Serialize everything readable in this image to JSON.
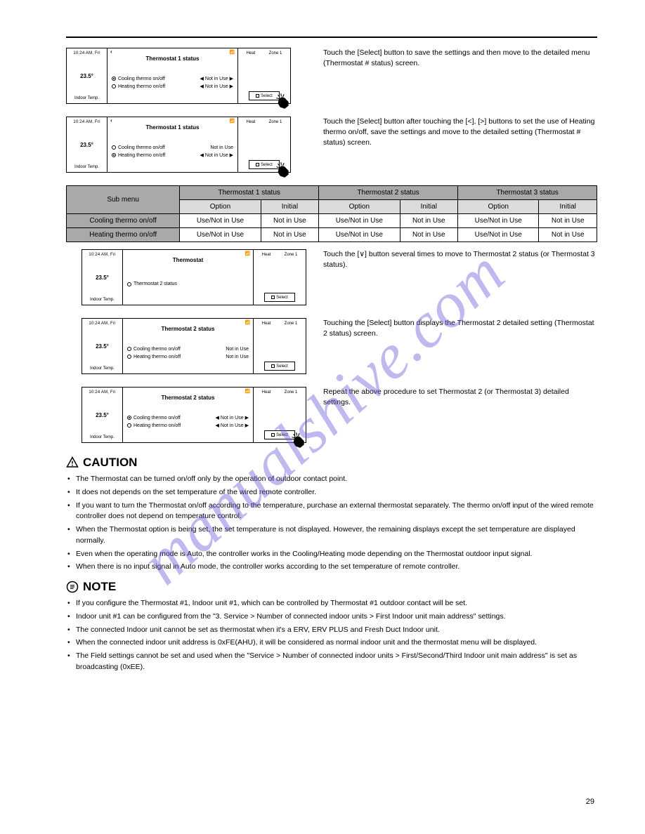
{
  "watermark": "manualshive.com",
  "page_number": "29",
  "table": {
    "top_headers": [
      "Thermostat 1 status",
      "Thermostat 2 status",
      "Thermostat 3 status"
    ],
    "sub_headers": [
      "Option",
      "Initial",
      "Option",
      "Initial",
      "Option",
      "Initial"
    ],
    "row_label_hdr": "Sub menu",
    "rows": [
      {
        "label": "Cooling thermo on/off",
        "cells": [
          "Use/Not in Use",
          "Not in Use",
          "Use/Not in Use",
          "Not in Use",
          "Use/Not in Use",
          "Not in Use"
        ]
      },
      {
        "label": "Heating thermo on/off",
        "cells": [
          "Use/Not in Use",
          "Not in Use",
          "Use/Not in Use",
          "Not in Use",
          "Use/Not in Use",
          "Not in Use"
        ]
      }
    ]
  },
  "steps": [
    {
      "id": "s1",
      "indent": false,
      "finger": true,
      "text_lines": [
        "Touch the [Select] button to save the settings and then move to the",
        "detailed menu (Thermostat # status) screen."
      ],
      "screen": {
        "left": {
          "top": "10:24 AM, Fri",
          "mid": "23.5°",
          "bot": "Indoor Temp."
        },
        "back": true,
        "signal": true,
        "title": "Thermostat 1 status",
        "rows": [
          {
            "label": "Cooling thermo on/off",
            "radio": true,
            "rvalue": "Not in Use",
            "arrows": true
          },
          {
            "label": "Heating thermo on/off",
            "radio": false,
            "rvalue": "Not in Use",
            "arrows": true
          }
        ],
        "right": {
          "mode": "Heat",
          "zone": "Zone 1",
          "btn": true,
          "btn_label": "Select"
        }
      }
    },
    {
      "id": "s2",
      "indent": false,
      "finger": true,
      "text_lines": [
        "Touch the [Select] button after touching the [<], [>] buttons to set",
        "the use of Heating thermo on/off, save the settings and move to the",
        "detailed setting (Thermostat # status) screen."
      ],
      "screen": {
        "left": {
          "top": "10:24 AM, Fri",
          "mid": "23.5°",
          "bot": "Indoor Temp."
        },
        "back": true,
        "signal": true,
        "title": "Thermostat 1 status",
        "rows": [
          {
            "label": "Cooling thermo on/off",
            "radio": false,
            "rvalue": "Not in Use",
            "arrows": false
          },
          {
            "label": "Heating thermo on/off",
            "radio": true,
            "rvalue": "Not in Use",
            "arrows": true
          }
        ],
        "right": {
          "mode": "Heat",
          "zone": "Zone 1",
          "btn": true,
          "btn_label": "Select"
        }
      }
    },
    {
      "id": "s3",
      "indent": true,
      "finger": false,
      "text_lines": [
        "Touch the [∨] button several times to move to Thermostat 2 status",
        "(or Thermostat 3 status)."
      ],
      "screen": {
        "left": {
          "top": "10:24 AM, Fri",
          "mid": "23.5°",
          "bot": "Indoor Temp."
        },
        "back": false,
        "signal": true,
        "title": "Thermostat",
        "rows": [
          {
            "label": "Thermostat 2 status",
            "radio": false,
            "rvalue": "",
            "arrows": false
          }
        ],
        "right": {
          "mode": "Heat",
          "zone": "Zone 1",
          "btn": true,
          "btn_label": "Select"
        }
      }
    },
    {
      "id": "s4",
      "indent": true,
      "finger": false,
      "text_lines": [
        "Touching the [Select] button displays the Thermostat 2 detailed",
        "setting (Thermostat 2 status) screen."
      ],
      "screen": {
        "left": {
          "top": "10:24 AM, Fri",
          "mid": "23.5°",
          "bot": "Indoor Temp."
        },
        "back": false,
        "signal": true,
        "title": "Thermostat 2 status",
        "rows": [
          {
            "label": "Cooling thermo on/off",
            "radio": false,
            "rvalue": "Not in Use",
            "arrows": false
          },
          {
            "label": "Heating thermo on/off",
            "radio": false,
            "rvalue": "Not in Use",
            "arrows": false
          }
        ],
        "right": {
          "mode": "Heat",
          "zone": "Zone 1",
          "btn": true,
          "btn_label": "Select"
        }
      }
    },
    {
      "id": "s5",
      "indent": true,
      "finger": true,
      "text_lines": [
        "Repeat the above procedure to set Thermostat 2 (or Thermostat 3)",
        "detailed settings."
      ],
      "screen": {
        "left": {
          "top": "10:24 AM, Fri",
          "mid": "23.5°",
          "bot": "Indoor Temp."
        },
        "back": false,
        "signal": true,
        "title": "Thermostat 2 status",
        "rows": [
          {
            "label": "Cooling thermo on/off",
            "radio": true,
            "rvalue": "Not in Use",
            "arrows": true
          },
          {
            "label": "Heating thermo on/off",
            "radio": false,
            "rvalue": "Not in Use",
            "arrows": true
          }
        ],
        "right": {
          "mode": "Heat",
          "zone": "Zone 1",
          "btn": true,
          "btn_label": "Select"
        }
      }
    }
  ],
  "caution": {
    "title": "CAUTION",
    "items": [
      "The Thermostat can be turned on/off only by the operation of outdoor contact point.",
      "It does not depends on the set temperature of the wired remote controller.",
      "If you want to turn the Thermostat on/off according to the temperature, purchase an external thermostat separately. The thermo on/off input of the wired remote controller does not depend on temperature control.",
      "When the Thermostat option is being set, the set temperature is not displayed. However, the remaining displays except the set temperature are displayed normally.",
      "Even when the operating mode is Auto, the controller works in the Cooling/Heating mode depending on the Thermostat outdoor input signal.",
      "When there is no input signal in Auto mode, the controller works according to the set temperature of remote controller."
    ]
  },
  "note": {
    "title": "NOTE",
    "items": [
      "If you configure the Thermostat #1, Indoor unit #1, which can be controlled by Thermostat #1 outdoor contact will be set.",
      "Indoor unit #1 can be configured from the \"3. Service > Number of connected indoor units > First Indoor unit main address\" settings.",
      "The connected Indoor unit cannot be set as thermostat when it's a ERV, ERV PLUS and Fresh Duct Indoor unit.",
      "When the connected indoor unit address is 0xFE(AHU), it will be considered as normal indoor unit and the thermostat menu will be displayed.",
      "The Field settings cannot be set and used when the \"Service > Number of connected indoor units > First/Second/Third Indoor unit main address\" is set as broadcasting (0xEE)."
    ]
  }
}
